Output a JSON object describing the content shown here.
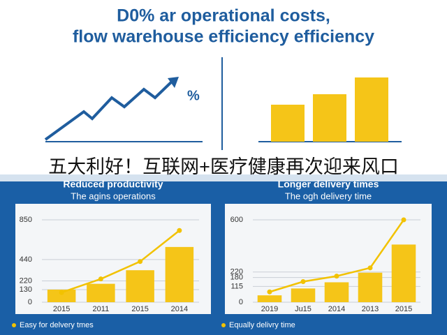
{
  "title_lines": [
    "D0% ar operational costs,",
    "flow warehouse efficiency efficiency"
  ],
  "icon_label": "%",
  "banner": "五大利好！互联网+医疗健康再次迎来风口",
  "chart_data": [
    {
      "type": "bar",
      "title": "Reduced productivity",
      "subtitle": "The agins operations",
      "categories": [
        "2015",
        "2011",
        "2015",
        "2014"
      ],
      "series": [
        {
          "type": "bar",
          "color": "#f5c518",
          "values": [
            130,
            190,
            330,
            570
          ]
        },
        {
          "type": "line",
          "name": "Easy for delvery tmes",
          "color": "#f2c200",
          "values": [
            100,
            240,
            420,
            740
          ]
        }
      ],
      "ylim": [
        0,
        850
      ],
      "yticks": [
        0,
        130,
        220,
        440,
        850
      ],
      "grid": true,
      "legend": "bottom-left"
    },
    {
      "type": "bar",
      "title": "Longer delivery times",
      "subtitle": "The ogh delivery time",
      "categories": [
        "2019",
        "Ju15",
        "2014",
        "2013",
        "2015"
      ],
      "series": [
        {
          "type": "bar",
          "color": "#f5c518",
          "values": [
            50,
            100,
            145,
            215,
            420
          ]
        },
        {
          "type": "line",
          "name": "Equally delivry time",
          "color": "#f2c200",
          "values": [
            75,
            150,
            190,
            250,
            600
          ]
        }
      ],
      "ylim": [
        0,
        600
      ],
      "yticks": [
        0,
        115,
        180,
        220,
        600
      ],
      "grid": true,
      "legend": "bottom-left"
    }
  ]
}
